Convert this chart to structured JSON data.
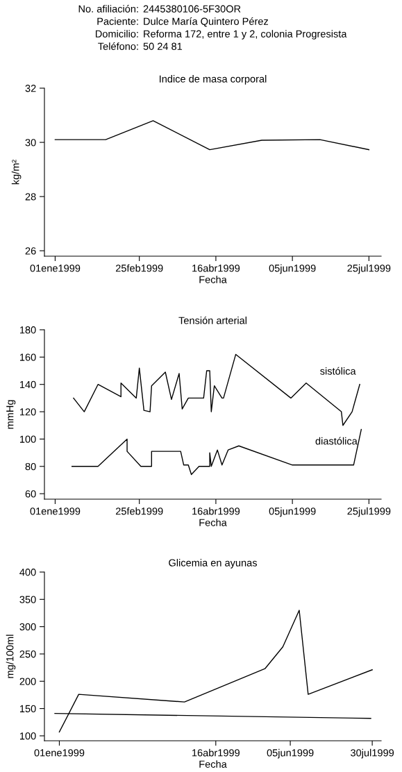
{
  "chart_data": [
    {
      "type": "line",
      "title": "Indice de masa corporal",
      "xlabel": "Fecha",
      "ylabel": "kg/m²",
      "annotations": [
        "No. afiliación: 2445380106-5F30OR",
        "Paciente: Dulce María Quintero Pérez",
        "Domicilio: Reforma 172, entre 1 y 2, colonia Progresista",
        "Teléfono: 50 24 81"
      ],
      "x": [
        "1999-01-01",
        "1999-02-03",
        "1999-03-06",
        "1999-04-12",
        "1999-05-16",
        "1999-06-23",
        "1999-07-25"
      ],
      "series": [
        {
          "color": "#000000",
          "values": [
            30.1,
            30.1,
            30.8,
            29.73,
            30.08,
            30.1,
            29.73
          ]
        }
      ],
      "xlim": [
        "1998-12-25",
        "1999-08-02"
      ],
      "ylim": [
        25.8,
        32
      ],
      "xticks": [
        {
          "value": "1999-01-01",
          "label": "01ene1999"
        },
        {
          "value": "1999-02-25",
          "label": "25feb1999"
        },
        {
          "value": "1999-04-16",
          "label": "16abr1999"
        },
        {
          "value": "1999-06-05",
          "label": "05jun1999"
        },
        {
          "value": "1999-07-25",
          "label": "25jul1999"
        }
      ],
      "yticks": [
        26,
        28,
        30,
        32
      ],
      "grid": false,
      "legend": false
    },
    {
      "type": "line",
      "title": "Tensión arterial",
      "xlabel": "Fecha",
      "ylabel": "mmHg",
      "series": [
        {
          "name": "sistólica",
          "color": "#000000",
          "x": [
            "1999-01-13",
            "1999-01-20",
            "1999-01-29",
            "1999-02-13",
            "1999-02-13",
            "1999-02-23",
            "1999-02-25",
            "1999-02-28",
            "1999-03-04",
            "1999-03-05",
            "1999-03-14",
            "1999-03-18",
            "1999-03-23",
            "1999-03-25",
            "1999-03-29",
            "1999-04-08",
            "1999-04-10",
            "1999-04-12",
            "1999-04-13",
            "1999-04-15",
            "1999-04-20",
            "1999-04-21",
            "1999-04-29",
            "1999-06-04",
            "1999-06-14",
            "1999-07-07",
            "1999-07-08",
            "1999-07-14",
            "1999-07-19"
          ],
          "values": [
            130,
            120,
            140,
            131,
            141,
            130,
            152,
            121,
            120,
            139,
            149,
            129,
            148,
            122,
            130,
            130,
            150,
            150,
            120,
            139,
            130,
            130,
            162,
            130,
            141,
            120,
            110,
            120,
            140
          ]
        },
        {
          "name": "diastólica",
          "color": "#000000",
          "x": [
            "1999-01-12",
            "1999-01-29",
            "1999-02-17",
            "1999-02-17",
            "1999-02-26",
            "1999-03-05",
            "1999-03-05",
            "1999-03-24",
            "1999-03-26",
            "1999-03-29",
            "1999-03-31",
            "1999-04-05",
            "1999-04-12",
            "1999-04-12",
            "1999-04-13",
            "1999-04-17",
            "1999-04-20",
            "1999-04-24",
            "1999-05-01",
            "1999-06-05",
            "1999-07-15",
            "1999-07-20"
          ],
          "values": [
            80,
            80,
            100,
            91,
            80,
            80,
            91,
            91,
            81,
            81,
            74,
            80,
            80,
            90,
            80,
            92,
            81,
            92,
            95,
            81,
            81,
            107
          ]
        }
      ],
      "xlim": [
        "1998-12-25",
        "1999-08-02"
      ],
      "ylim": [
        56,
        180
      ],
      "xticks": [
        {
          "value": "1999-01-01",
          "label": "01ene1999"
        },
        {
          "value": "1999-02-25",
          "label": "25feb1999"
        },
        {
          "value": "1999-04-16",
          "label": "16abr1999"
        },
        {
          "value": "1999-06-05",
          "label": "05jun1999"
        },
        {
          "value": "1999-07-25",
          "label": "25jul1999"
        }
      ],
      "yticks": [
        60,
        80,
        100,
        120,
        140,
        160,
        180
      ],
      "grid": false,
      "legend": false
    },
    {
      "type": "line",
      "title": "Glicemia en ayunas",
      "xlabel": "Fecha",
      "ylabel": "mg/100ml",
      "series": [
        {
          "color": "#000000",
          "x": [
            "1999-01-01",
            "1999-01-14",
            "1999-03-26",
            "1999-05-19",
            "1999-05-31",
            "1999-06-11",
            "1999-06-17",
            "1999-07-30"
          ],
          "values": [
            107,
            176,
            162,
            223,
            263,
            330,
            176,
            221
          ]
        },
        {
          "color": "#000000",
          "x": [
            "1998-12-29",
            "1999-07-29"
          ],
          "values": [
            141,
            132
          ]
        }
      ],
      "xlim": [
        "1998-12-22",
        "1999-08-05"
      ],
      "ylim": [
        91,
        400
      ],
      "xticks": [
        {
          "value": "1999-01-01",
          "label": "01ene1999"
        },
        {
          "value": "1999-04-16",
          "label": "16abr1999"
        },
        {
          "value": "1999-06-05",
          "label": "05jun1999"
        },
        {
          "value": "1999-07-30",
          "label": "30jul1999"
        }
      ],
      "yticks": [
        100,
        150,
        200,
        250,
        300,
        350,
        400
      ],
      "grid": false,
      "legend": false
    }
  ]
}
